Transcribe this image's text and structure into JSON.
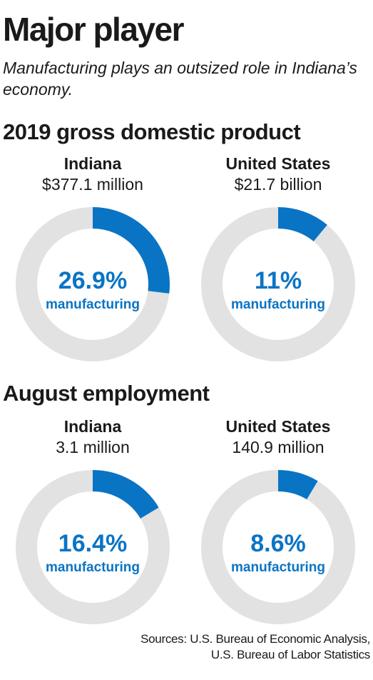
{
  "header": {
    "title": "Major player",
    "subtitle": "Manufacturing plays an outsized role in Indiana’s economy."
  },
  "colors": {
    "accent": "#0a74c4",
    "track": "#e2e2e2",
    "text": "#1a1a1a"
  },
  "chart_data": [
    {
      "type": "pie",
      "section": "2019 gross domestic product",
      "region": "Indiana",
      "total": "$377.1 million",
      "value": 26.9,
      "value_label": "26.9%",
      "label": "manufacturing"
    },
    {
      "type": "pie",
      "section": "2019 gross domestic product",
      "region": "United States",
      "total": "$21.7 billion",
      "value": 11,
      "value_label": "11%",
      "label": "manufacturing"
    },
    {
      "type": "pie",
      "section": "August employment",
      "region": "Indiana",
      "total": "3.1 million",
      "value": 16.4,
      "value_label": "16.4%",
      "label": "manufacturing"
    },
    {
      "type": "pie",
      "section": "August employment",
      "region": "United States",
      "total": "140.9 million",
      "value": 8.6,
      "value_label": "8.6%",
      "label": "manufacturing"
    }
  ],
  "sections": {
    "gdp_title": "2019 gross domestic product",
    "employment_title": "August employment"
  },
  "source": {
    "line1": "Sources: U.S. Bureau of Economic Analysis,",
    "line2": "U.S. Bureau of Labor Statistics"
  }
}
